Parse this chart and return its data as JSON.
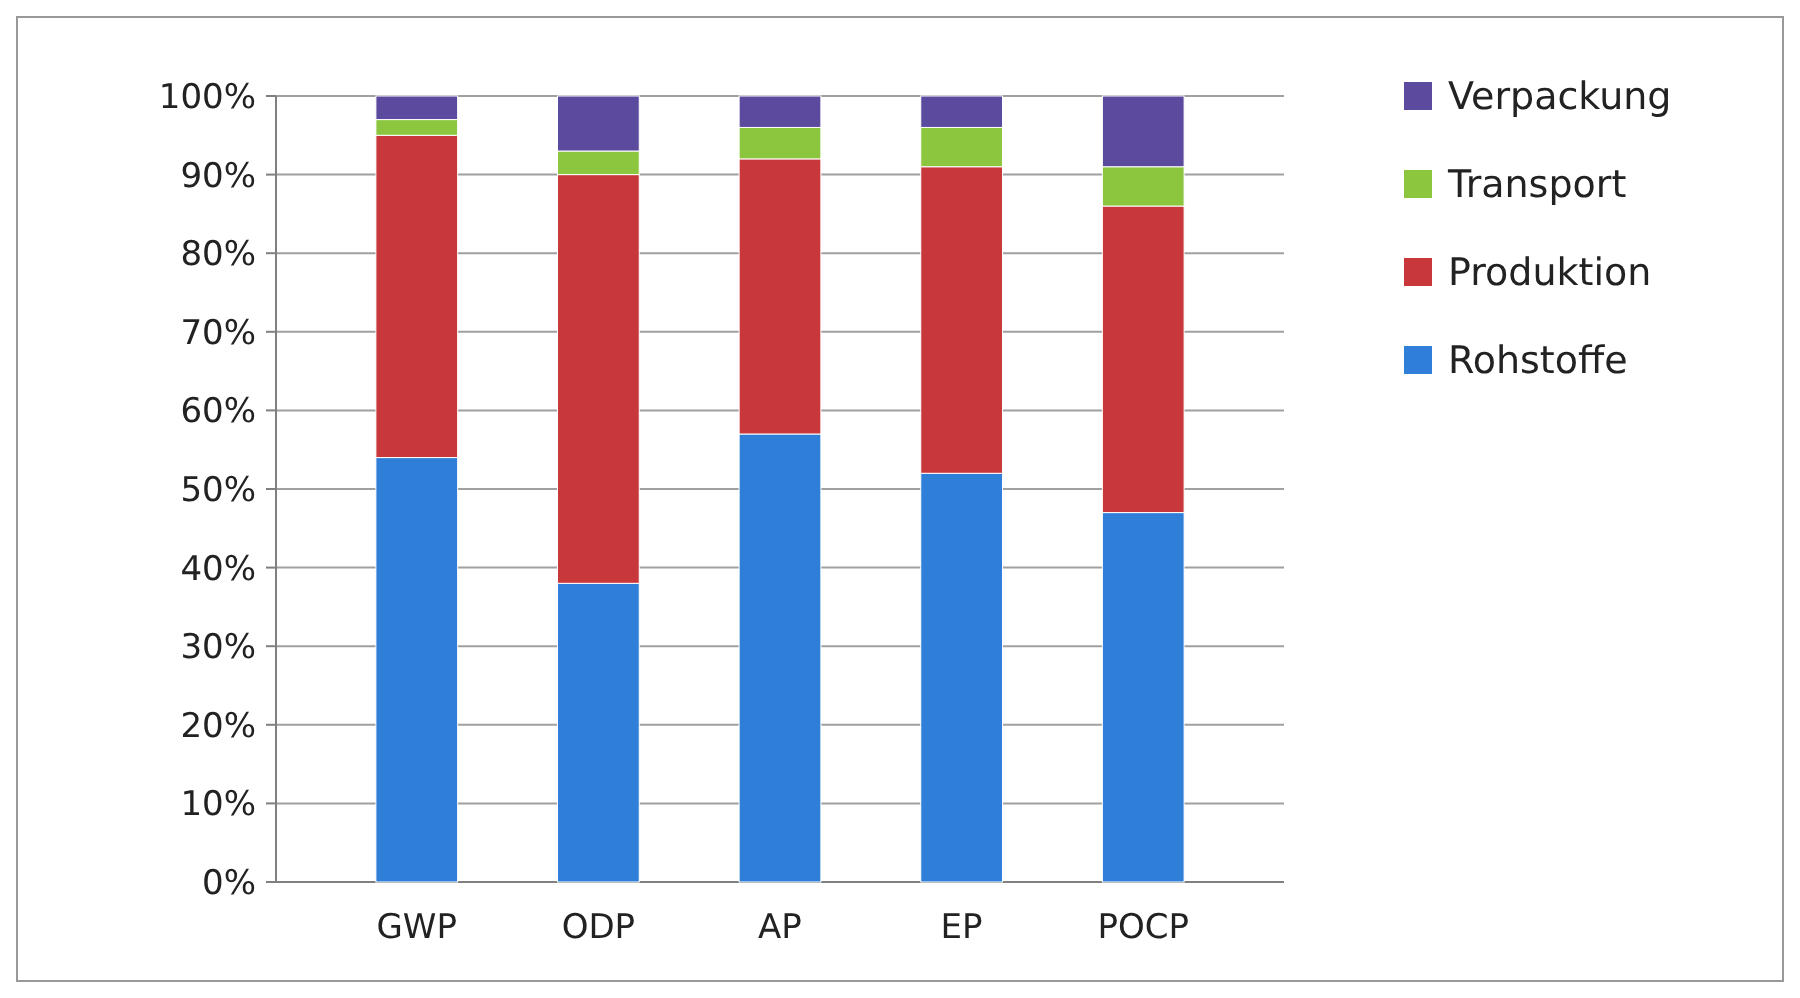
{
  "chart_data": {
    "type": "bar",
    "stacked": true,
    "categories": [
      "GWP",
      "ODP",
      "AP",
      "EP",
      "POCP"
    ],
    "series": [
      {
        "name": "Rohstoffe",
        "color": "#2f7ed8",
        "values": [
          54,
          38,
          57,
          52,
          47
        ]
      },
      {
        "name": "Produktion",
        "color": "#c8383a",
        "values": [
          41,
          52,
          35,
          39,
          39
        ]
      },
      {
        "name": "Transport",
        "color": "#8cc63f",
        "values": [
          2,
          3,
          4,
          5,
          5
        ]
      },
      {
        "name": "Verpackung",
        "color": "#5b4a9e",
        "values": [
          3,
          7,
          4,
          4,
          9
        ]
      }
    ],
    "ylim": [
      0,
      100
    ],
    "yticks": [
      {
        "value": 0,
        "label": "0%"
      },
      {
        "value": 10,
        "label": "10%"
      },
      {
        "value": 20,
        "label": "20%"
      },
      {
        "value": 30,
        "label": "30%"
      },
      {
        "value": 40,
        "label": "40%"
      },
      {
        "value": 50,
        "label": "50%"
      },
      {
        "value": 60,
        "label": "60%"
      },
      {
        "value": 70,
        "label": "70%"
      },
      {
        "value": 80,
        "label": "80%"
      },
      {
        "value": 90,
        "label": "90%"
      },
      {
        "value": 100,
        "label": "100%"
      }
    ],
    "grid": "y",
    "legend": "right"
  }
}
